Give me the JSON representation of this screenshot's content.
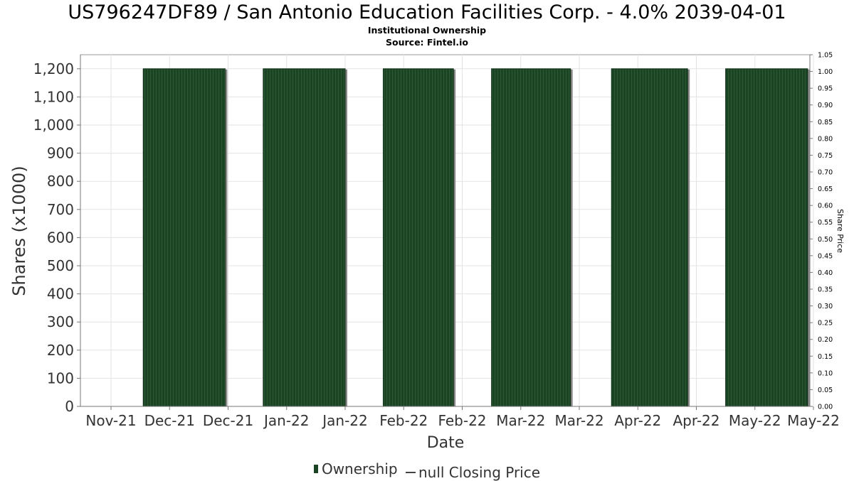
{
  "chart_data": {
    "type": "bar",
    "title": "US796247DF89 / San Antonio Education Facilities Corp. - 4.0% 2039-04-01",
    "subtitle": "Institutional Ownership",
    "source": "Source: Fintel.io",
    "xlabel": "Date",
    "ylabel": "Shares (x1000)",
    "y2label": "Share Price",
    "ylim": [
      0,
      1250
    ],
    "y2lim": [
      0,
      1.05
    ],
    "x_ticks": [
      "Nov-21",
      "Dec-21",
      "Dec-21",
      "Jan-22",
      "Jan-22",
      "Feb-22",
      "Feb-22",
      "Mar-22",
      "Mar-22",
      "Apr-22",
      "Apr-22",
      "May-22",
      "May-22"
    ],
    "y_ticks": [
      0,
      100,
      200,
      300,
      400,
      500,
      600,
      700,
      800,
      900,
      1000,
      1100,
      1200
    ],
    "y2_ticks": [
      "0.00",
      "0.05",
      "0.10",
      "0.15",
      "0.20",
      "0.25",
      "0.30",
      "0.35",
      "0.40",
      "0.45",
      "0.50",
      "0.55",
      "0.60",
      "0.65",
      "0.70",
      "0.75",
      "0.80",
      "0.85",
      "0.90",
      "0.95",
      "1.00",
      "1.05"
    ],
    "series": [
      {
        "name": "Ownership",
        "color": "#1a4423",
        "bars": [
          {
            "start_tick": 0.55,
            "end_tick": 1.95,
            "value": 1200
          },
          {
            "start_tick": 2.6,
            "end_tick": 4.0,
            "value": 1200
          },
          {
            "start_tick": 4.65,
            "end_tick": 5.85,
            "value": 1200
          },
          {
            "start_tick": 6.5,
            "end_tick": 7.85,
            "value": 1200
          },
          {
            "start_tick": 8.55,
            "end_tick": 9.85,
            "value": 1200
          },
          {
            "start_tick": 10.5,
            "end_tick": 11.9,
            "value": 1200
          }
        ]
      },
      {
        "name": "null Closing Price",
        "color": "#444444",
        "values": []
      }
    ],
    "grid": true,
    "legend_position": "bottom"
  },
  "legend": {
    "ownership_label": "Ownership",
    "price_label": "null Closing Price"
  }
}
